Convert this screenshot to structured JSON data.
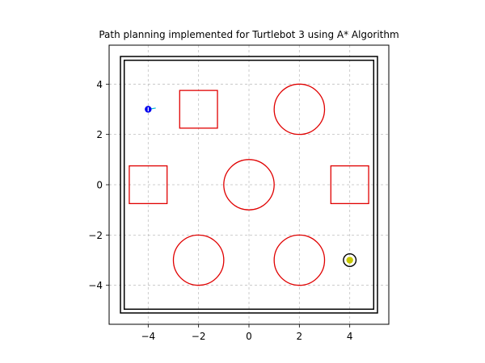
{
  "chart_data": {
    "type": "scatter",
    "title": "Path planning implemented for Turtlebot 3 using A* Algorithm",
    "xlim": [
      -5.55,
      5.55
    ],
    "ylim": [
      -5.55,
      5.55
    ],
    "xticks": [
      -4,
      -2,
      0,
      2,
      4
    ],
    "yticks": [
      -4,
      -2,
      0,
      2,
      4
    ],
    "xtick_labels": [
      "−4",
      "−2",
      "0",
      "2",
      "4"
    ],
    "ytick_labels": [
      "−4",
      "−2",
      "0",
      "2",
      "4"
    ],
    "grid": true,
    "obstacle_color": "#e00000",
    "boundary_color": "#000000",
    "boundary": {
      "outer": [
        -5.1,
        5.1
      ],
      "inner": [
        -4.95,
        4.95
      ]
    },
    "circle_obstacles": [
      {
        "center": [
          2,
          3
        ],
        "radius": 1
      },
      {
        "center": [
          0,
          0
        ],
        "radius": 1
      },
      {
        "center": [
          -2,
          -3
        ],
        "radius": 1
      },
      {
        "center": [
          2,
          -3
        ],
        "radius": 1
      }
    ],
    "square_obstacles": [
      {
        "x": [
          -2.75,
          -1.25
        ],
        "y": [
          2.25,
          3.75
        ]
      },
      {
        "x": [
          -4.75,
          -3.25
        ],
        "y": [
          -0.75,
          0.75
        ]
      },
      {
        "x": [
          3.25,
          4.75
        ],
        "y": [
          -0.75,
          0.75
        ]
      }
    ],
    "start": {
      "x": -4,
      "y": 3,
      "color": "#0000ee"
    },
    "start_heading_stub": {
      "x": [
        -4,
        -3.7
      ],
      "y": [
        3,
        3.05
      ],
      "color": "#00bcd4"
    },
    "goal": {
      "x": 4,
      "y": -3,
      "marker_color": "#c8c800",
      "ring_color": "#000000",
      "ring_radius": 0.25
    }
  }
}
